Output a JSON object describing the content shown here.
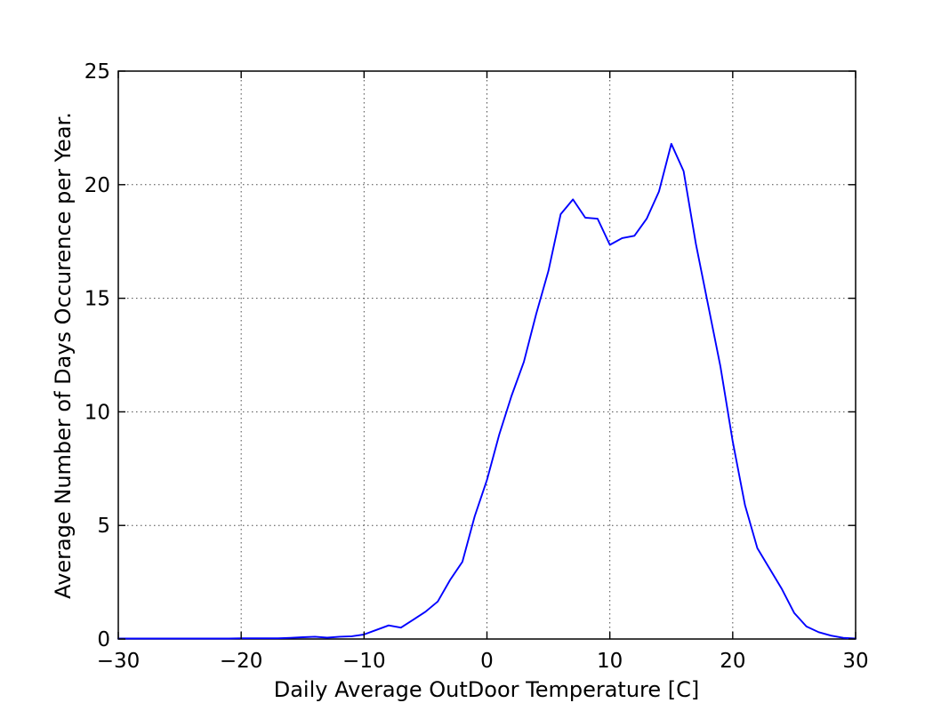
{
  "chart_data": {
    "type": "line",
    "title": "",
    "xlabel": "Daily Average OutDoor Temperature [C]",
    "ylabel": "Average Number of Days Occurence per Year.",
    "xlim": [
      -30,
      30
    ],
    "ylim": [
      0,
      25
    ],
    "xticks": [
      -30,
      -20,
      -10,
      0,
      10,
      20,
      30
    ],
    "xtick_labels": [
      "−30",
      "−20",
      "−10",
      "0",
      "10",
      "20",
      "30"
    ],
    "yticks": [
      0,
      5,
      10,
      15,
      20,
      25
    ],
    "ytick_labels": [
      "0",
      "5",
      "10",
      "15",
      "20",
      "25"
    ],
    "grid": true,
    "grid_linestyle": "dotted",
    "legend": "none",
    "line_color": "#0000ff",
    "axes_color": "#000000",
    "grid_color": "#4a4a4a",
    "tick_label_color": "#000000",
    "background_color": "#ffffff",
    "series": [
      {
        "name": "days-occurrence-per-temperature",
        "x": [
          -30,
          -29,
          -28,
          -27,
          -26,
          -25,
          -24,
          -23,
          -22,
          -21,
          -20,
          -19,
          -18,
          -17,
          -16,
          -15,
          -14,
          -13,
          -12,
          -11,
          -10,
          -9,
          -8,
          -7,
          -6,
          -5,
          -4,
          -3,
          -2,
          -1,
          0,
          1,
          2,
          3,
          4,
          5,
          6,
          7,
          8,
          9,
          10,
          11,
          12,
          13,
          14,
          15,
          16,
          17,
          18,
          19,
          20,
          21,
          22,
          23,
          24,
          25,
          26,
          27,
          28,
          29,
          30
        ],
        "y": [
          0.02,
          0.02,
          0.02,
          0.02,
          0.02,
          0.02,
          0.02,
          0.02,
          0.02,
          0.02,
          0.03,
          0.03,
          0.03,
          0.03,
          0.05,
          0.08,
          0.1,
          0.06,
          0.1,
          0.12,
          0.2,
          0.4,
          0.6,
          0.5,
          0.85,
          1.2,
          1.65,
          2.6,
          3.4,
          5.4,
          7.0,
          9.0,
          10.7,
          12.2,
          14.3,
          16.2,
          18.7,
          19.35,
          18.55,
          18.5,
          17.35,
          17.65,
          17.75,
          18.5,
          19.7,
          21.8,
          20.6,
          17.4,
          14.7,
          12.0,
          8.7,
          5.9,
          4.0,
          3.1,
          2.2,
          1.15,
          0.55,
          0.3,
          0.15,
          0.05,
          0.02
        ]
      }
    ]
  }
}
